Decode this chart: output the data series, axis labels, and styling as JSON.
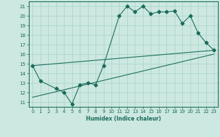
{
  "xlabel": "Humidex (Indice chaleur)",
  "bg_color": "#cce8e0",
  "line_color": "#1a6b5a",
  "grid_color": "#b0d8d0",
  "line1_x": [
    0,
    1,
    3,
    4,
    5,
    6,
    7,
    8,
    9,
    11,
    12,
    13,
    14,
    15,
    16,
    17,
    18,
    19,
    20,
    21,
    22,
    23
  ],
  "line1_y": [
    14.8,
    13.2,
    12.4,
    12.0,
    10.8,
    12.8,
    13.0,
    12.8,
    14.8,
    20.0,
    21.0,
    20.4,
    21.0,
    20.2,
    20.4,
    20.4,
    20.5,
    19.2,
    20.0,
    18.2,
    17.2,
    16.4
  ],
  "line2_x": [
    0,
    23
  ],
  "line2_y": [
    14.8,
    16.4
  ],
  "line3_x": [
    0,
    23
  ],
  "line3_y": [
    11.5,
    16.0
  ],
  "xlim": [
    -0.5,
    23.5
  ],
  "ylim": [
    10.5,
    21.5
  ],
  "xticks": [
    0,
    1,
    2,
    3,
    4,
    5,
    6,
    7,
    8,
    9,
    10,
    11,
    12,
    13,
    14,
    15,
    16,
    17,
    18,
    19,
    20,
    21,
    22,
    23
  ],
  "yticks": [
    11,
    12,
    13,
    14,
    15,
    16,
    17,
    18,
    19,
    20,
    21
  ],
  "xlabel_fontsize": 5.5,
  "tick_fontsize": 5.0
}
